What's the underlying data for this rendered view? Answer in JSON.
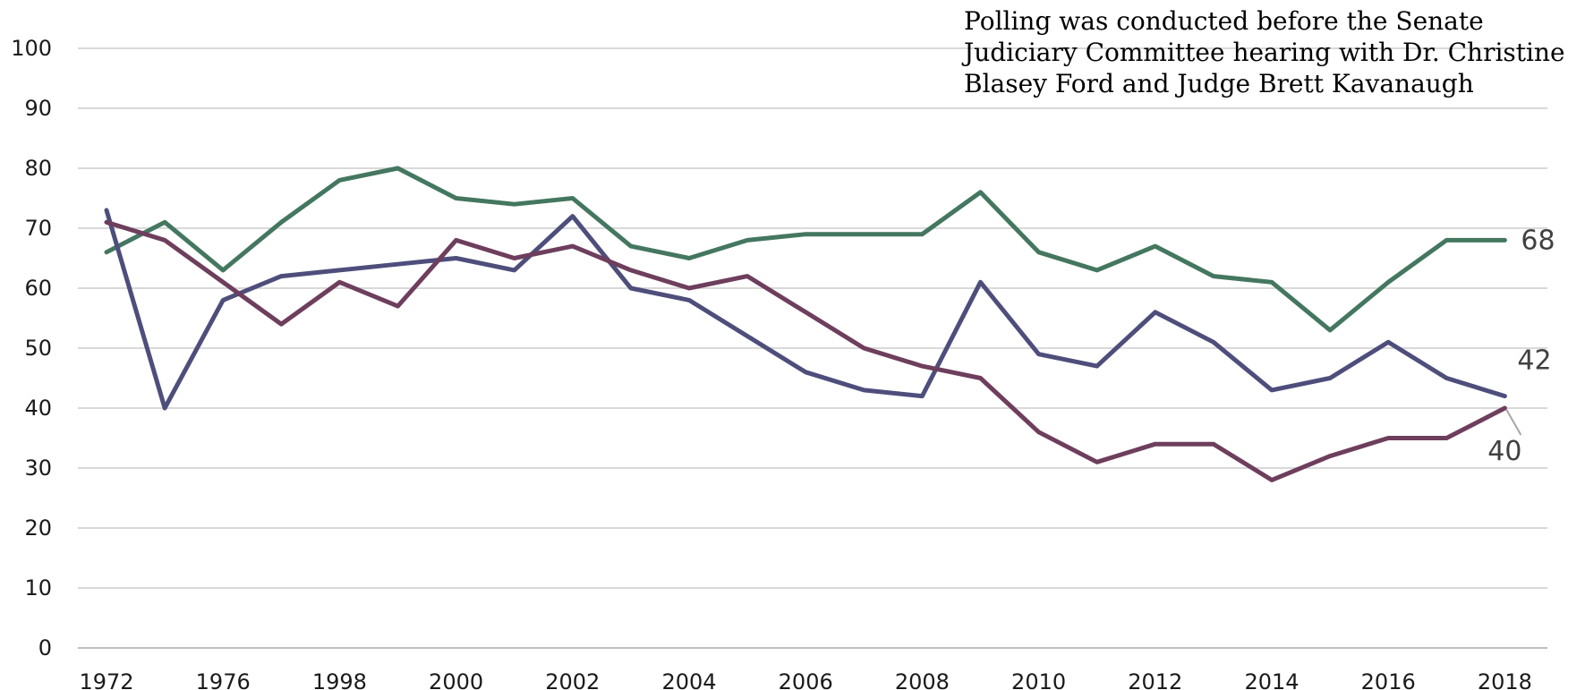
{
  "chart_data": {
    "type": "line",
    "title": "",
    "xlabel": "",
    "ylabel": "",
    "ylim": [
      0,
      100
    ],
    "yticks": [
      "0",
      "10",
      "20",
      "30",
      "40",
      "50",
      "60",
      "70",
      "80",
      "90",
      "100"
    ],
    "x": [
      "1972",
      "1974",
      "1976",
      "1977",
      "1998",
      "1999",
      "2000",
      "2001",
      "2002",
      "2003",
      "2004",
      "2005",
      "2006",
      "2007",
      "2008",
      "2009",
      "2010",
      "2011",
      "2012",
      "2013",
      "2014",
      "2015",
      "2016",
      "2017",
      "2018"
    ],
    "xtick_labels": [
      "1972",
      "1976",
      "1998",
      "2000",
      "2002",
      "2004",
      "2006",
      "2008",
      "2010",
      "2012",
      "2014",
      "2016",
      "2018"
    ],
    "grid": "horizontal",
    "legend": "none",
    "series": [
      {
        "color": "#44775f",
        "values": [
          66,
          71,
          63,
          71,
          78,
          80,
          75,
          74,
          75,
          67,
          65,
          68,
          69,
          69,
          69,
          76,
          66,
          63,
          67,
          62,
          61,
          53,
          61,
          68,
          68
        ],
        "end_label": "68"
      },
      {
        "color": "#4e4e7c",
        "values": [
          73,
          40,
          58,
          62,
          63,
          64,
          65,
          63,
          72,
          60,
          58,
          52,
          46,
          43,
          42,
          61,
          49,
          47,
          56,
          51,
          43,
          45,
          51,
          45,
          42
        ],
        "end_label": "42"
      },
      {
        "color": "#6e3e5d",
        "values": [
          71,
          68,
          61,
          54,
          61,
          57,
          68,
          65,
          67,
          63,
          60,
          62,
          56,
          50,
          47,
          45,
          36,
          31,
          34,
          34,
          28,
          32,
          35,
          35,
          40
        ],
        "end_label": "40"
      }
    ],
    "annotation": "Polling was conducted before the Senate Judiciary Committee hearing with Dr. Christine Blasey Ford and Judge Brett Kavanaugh"
  },
  "colors": {
    "gridline": "#d9d9d9",
    "axis": "#bfbfbf",
    "leader_line": "#a6a6a6"
  }
}
